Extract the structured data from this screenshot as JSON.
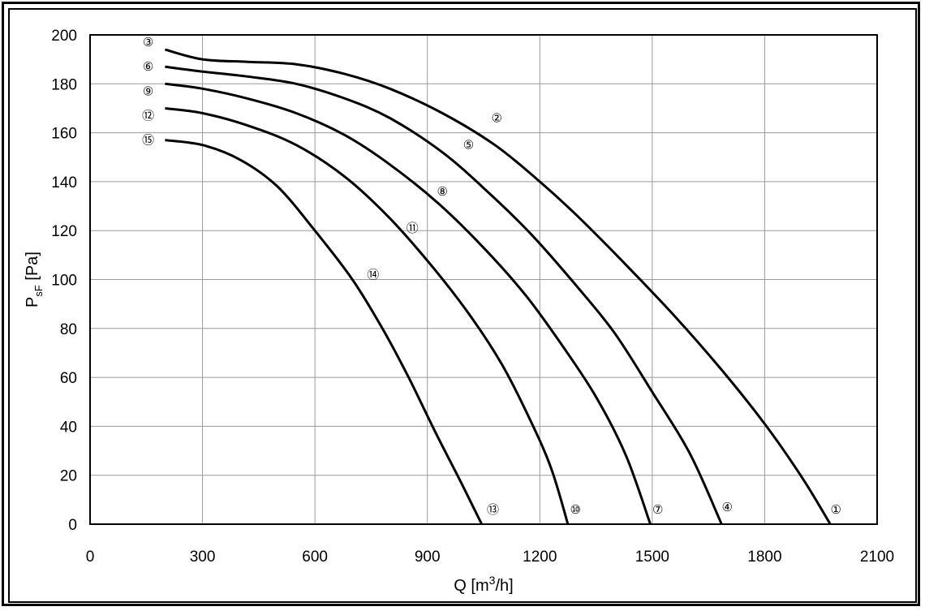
{
  "chart_data": {
    "type": "line",
    "title": "",
    "xlabel": {
      "text": "Q [m",
      "sup": "3",
      "tail": "/h]"
    },
    "ylabel": {
      "text": "P",
      "sub": "sF",
      "tail": " [Pa]"
    },
    "xlim": [
      0,
      2100
    ],
    "ylim": [
      0,
      200
    ],
    "xticks": [
      0,
      300,
      600,
      900,
      1200,
      1500,
      1800,
      2100
    ],
    "yticks": [
      0,
      20,
      40,
      60,
      80,
      100,
      120,
      140,
      160,
      180,
      200
    ],
    "xtick_labels": [
      "0",
      "300",
      "600",
      "900",
      "1200",
      "1500",
      "1800",
      "2100"
    ],
    "ytick_labels": [
      "0",
      "20",
      "40",
      "60",
      "80",
      "100",
      "120",
      "140",
      "160",
      "180",
      "200"
    ],
    "grid": true,
    "series": [
      {
        "points": [
          [
            200,
            194
          ],
          [
            300,
            190
          ],
          [
            420,
            189
          ],
          [
            550,
            188
          ],
          [
            680,
            184
          ],
          [
            800,
            178
          ],
          [
            940,
            168
          ],
          [
            1080,
            155
          ],
          [
            1200,
            140
          ],
          [
            1300,
            126
          ],
          [
            1430,
            106
          ],
          [
            1560,
            85
          ],
          [
            1680,
            64
          ],
          [
            1800,
            41
          ],
          [
            1900,
            19
          ],
          [
            1975,
            0
          ]
        ],
        "labels": [
          {
            "text": "③",
            "x": 155,
            "y": 197
          },
          {
            "text": "②",
            "x": 1085,
            "y": 166
          },
          {
            "text": "①",
            "x": 1990,
            "y": 6
          }
        ]
      },
      {
        "points": [
          [
            200,
            187
          ],
          [
            300,
            185
          ],
          [
            420,
            183
          ],
          [
            550,
            180
          ],
          [
            680,
            174
          ],
          [
            800,
            166
          ],
          [
            940,
            152
          ],
          [
            1060,
            136
          ],
          [
            1180,
            118
          ],
          [
            1300,
            97
          ],
          [
            1400,
            78
          ],
          [
            1500,
            54
          ],
          [
            1600,
            29
          ],
          [
            1685,
            0
          ]
        ],
        "labels": [
          {
            "text": "⑥",
            "x": 155,
            "y": 187
          },
          {
            "text": "⑤",
            "x": 1010,
            "y": 155
          },
          {
            "text": "④",
            "x": 1700,
            "y": 7
          }
        ]
      },
      {
        "points": [
          [
            200,
            180
          ],
          [
            300,
            178
          ],
          [
            420,
            174
          ],
          [
            550,
            168
          ],
          [
            680,
            159
          ],
          [
            800,
            147
          ],
          [
            930,
            131
          ],
          [
            1050,
            113
          ],
          [
            1160,
            94
          ],
          [
            1260,
            73
          ],
          [
            1350,
            52
          ],
          [
            1430,
            28
          ],
          [
            1495,
            0
          ]
        ],
        "labels": [
          {
            "text": "⑨",
            "x": 155,
            "y": 177
          },
          {
            "text": "⑧",
            "x": 940,
            "y": 136
          },
          {
            "text": "⑦",
            "x": 1515,
            "y": 6
          }
        ]
      },
      {
        "points": [
          [
            200,
            170
          ],
          [
            300,
            168
          ],
          [
            420,
            163
          ],
          [
            550,
            155
          ],
          [
            680,
            142
          ],
          [
            800,
            125
          ],
          [
            920,
            104
          ],
          [
            1020,
            84
          ],
          [
            1100,
            65
          ],
          [
            1170,
            44
          ],
          [
            1230,
            23
          ],
          [
            1275,
            0
          ]
        ],
        "labels": [
          {
            "text": "⑫",
            "x": 155,
            "y": 167
          },
          {
            "text": "⑪",
            "x": 860,
            "y": 121
          },
          {
            "text": "⑩",
            "x": 1295,
            "y": 6
          }
        ]
      },
      {
        "points": [
          [
            200,
            157
          ],
          [
            300,
            155
          ],
          [
            400,
            149
          ],
          [
            500,
            138
          ],
          [
            600,
            120
          ],
          [
            700,
            100
          ],
          [
            780,
            80
          ],
          [
            850,
            60
          ],
          [
            920,
            38
          ],
          [
            990,
            17
          ],
          [
            1045,
            0
          ]
        ],
        "labels": [
          {
            "text": "⑮",
            "x": 155,
            "y": 157
          },
          {
            "text": "⑭",
            "x": 755,
            "y": 102
          },
          {
            "text": "⑬",
            "x": 1075,
            "y": 6
          }
        ]
      }
    ]
  }
}
